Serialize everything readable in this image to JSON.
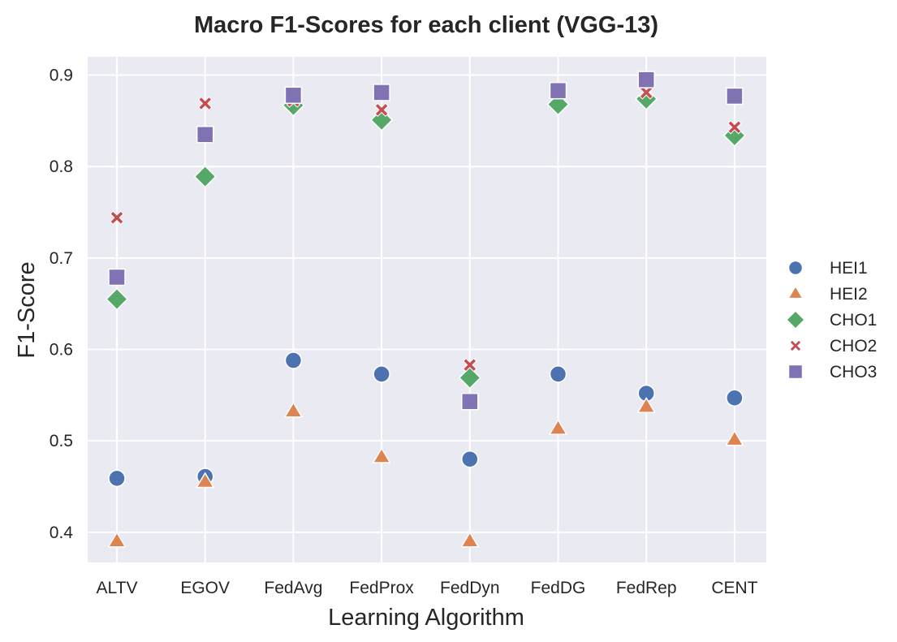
{
  "chart_data": {
    "type": "scatter",
    "title": "Macro F1-Scores for each client (VGG-13)",
    "xlabel": "Learning Algorithm",
    "ylabel": "F1-Score",
    "categories": [
      "ALTV",
      "EGOV",
      "FedAvg",
      "FedProx",
      "FedDyn",
      "FedDG",
      "FedRep",
      "CENT"
    ],
    "ylim": [
      0.367,
      0.92
    ],
    "yticks": [
      "0.4",
      "0.5",
      "0.6",
      "0.7",
      "0.8",
      "0.9"
    ],
    "grid": true,
    "legend_position": "right",
    "plot_background": "#eaeaf2",
    "series": [
      {
        "name": "HEI1",
        "marker": "circle",
        "color": "#4c72b0",
        "values": [
          0.459,
          0.461,
          0.588,
          0.573,
          0.48,
          0.573,
          0.552,
          0.547
        ]
      },
      {
        "name": "HEI2",
        "marker": "triangle",
        "color": "#dd8452",
        "values": [
          0.39,
          0.455,
          0.532,
          0.482,
          0.39,
          0.513,
          0.537,
          0.501
        ]
      },
      {
        "name": "CHO1",
        "marker": "diamond",
        "color": "#55a868",
        "values": [
          0.655,
          0.789,
          0.867,
          0.851,
          0.569,
          0.868,
          0.874,
          0.834
        ]
      },
      {
        "name": "CHO2",
        "marker": "x",
        "color": "#c44e52",
        "values": [
          0.744,
          0.869,
          0.872,
          0.862,
          0.583,
          0.885,
          0.881,
          0.843
        ]
      },
      {
        "name": "CHO3",
        "marker": "square",
        "color": "#8172b3",
        "values": [
          0.679,
          0.835,
          0.878,
          0.881,
          0.543,
          0.883,
          0.895,
          0.877
        ]
      }
    ]
  }
}
